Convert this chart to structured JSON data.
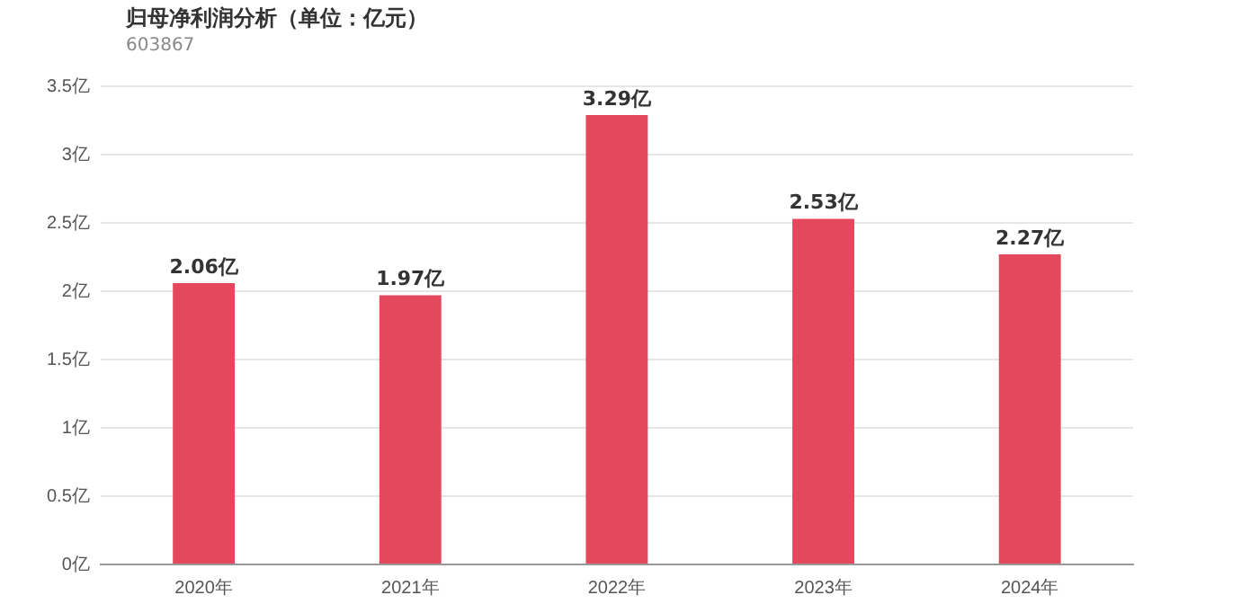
{
  "chart_data": {
    "type": "bar",
    "title": "归母净利润分析（单位：亿元）",
    "subtitle": "603867",
    "categories": [
      "2020年",
      "2021年",
      "2022年",
      "2023年",
      "2024年"
    ],
    "values": [
      2.06,
      1.97,
      3.29,
      2.53,
      2.27
    ],
    "value_labels": [
      "2.06亿",
      "1.97亿",
      "3.29亿",
      "2.53亿",
      "2.27亿"
    ],
    "color": "#e5485d",
    "ylim": [
      0,
      3.5
    ],
    "yticks": [
      {
        "value": 0,
        "label": "0亿"
      },
      {
        "value": 0.5,
        "label": "0.5亿"
      },
      {
        "value": 1,
        "label": "1亿"
      },
      {
        "value": 1.5,
        "label": "1.5亿"
      },
      {
        "value": 2,
        "label": "2亿"
      },
      {
        "value": 2.5,
        "label": "2.5亿"
      },
      {
        "value": 3,
        "label": "3亿"
      },
      {
        "value": 3.5,
        "label": "3.5亿"
      }
    ],
    "grid": "y",
    "legend": false
  }
}
